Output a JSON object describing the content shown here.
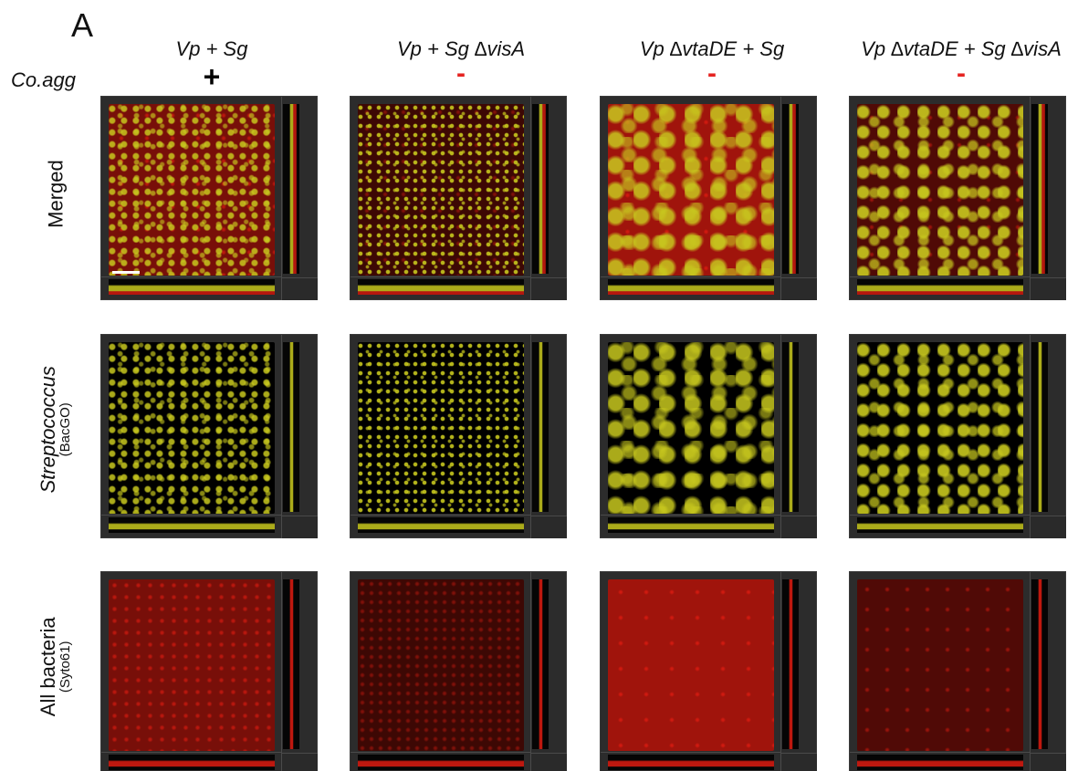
{
  "panel_letter": "A",
  "coagg_label": "Co.agg",
  "columns": [
    {
      "label": "Vp + Sg",
      "coagg": "+"
    },
    {
      "label": "Vp + Sg ∆visA",
      "coagg": "-"
    },
    {
      "label": "Vp ∆vtaDE + Sg",
      "coagg": "-"
    },
    {
      "label": "Vp ∆vtaDE + Sg ∆visA",
      "coagg": "-"
    }
  ],
  "rows": [
    {
      "label": "Merged",
      "sublabel": ""
    },
    {
      "label": "Streptococcus",
      "sublabel": "(BacGO)"
    },
    {
      "label": "All bacteria",
      "sublabel": "(Syto61)"
    }
  ],
  "colors": {
    "streptococcus_channel": "#c8c81e",
    "all_bacteria_channel": "#d21a10",
    "negative_sign": "#e52421",
    "positive_sign": "#000000",
    "tile_frame": "#2c2c2c"
  }
}
